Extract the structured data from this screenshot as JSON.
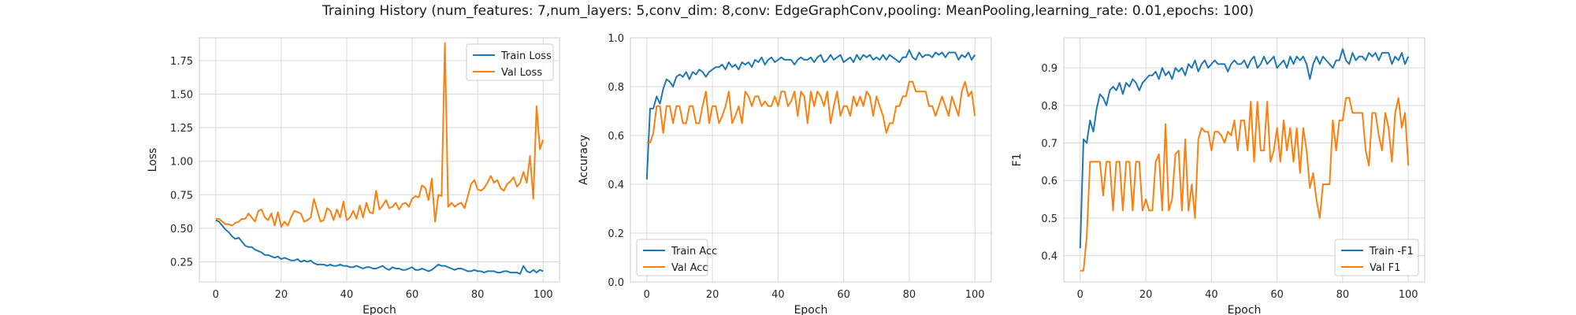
{
  "colors": {
    "train": "#1f77b4",
    "val": "#ff7f0e",
    "grid": "#d9d9d9",
    "spine": "#cccccc"
  },
  "chart_data": [
    {
      "suptitle": "Training History (num_features: 7,num_layers: 5,conv_dim: 8,conv: EdgeGraphConv,pooling: MeanPooling,learning_rate: 0.01,epochs: 100)",
      "type": "line",
      "xlabel": "Epoch",
      "ylabel": "Loss",
      "xlim": [
        -5,
        105
      ],
      "ylim": [
        0.1,
        1.92
      ],
      "xticks": [
        0,
        20,
        40,
        60,
        80,
        100
      ],
      "yticks": [
        0.25,
        0.5,
        0.75,
        1.0,
        1.25,
        1.5,
        1.75
      ],
      "ytick_labels": [
        "0.25",
        "0.50",
        "0.75",
        "1.00",
        "1.25",
        "1.50",
        "1.75"
      ],
      "grid": true,
      "legend": "upper right",
      "series": [
        {
          "name": "Train Loss",
          "color": "#1f77b4",
          "values": [
            0.56,
            0.55,
            0.52,
            0.49,
            0.47,
            0.44,
            0.42,
            0.43,
            0.4,
            0.37,
            0.36,
            0.36,
            0.34,
            0.33,
            0.32,
            0.3,
            0.3,
            0.29,
            0.28,
            0.29,
            0.27,
            0.28,
            0.27,
            0.26,
            0.26,
            0.27,
            0.25,
            0.26,
            0.25,
            0.26,
            0.24,
            0.23,
            0.23,
            0.23,
            0.22,
            0.23,
            0.22,
            0.22,
            0.23,
            0.22,
            0.22,
            0.21,
            0.21,
            0.22,
            0.21,
            0.2,
            0.21,
            0.21,
            0.2,
            0.2,
            0.21,
            0.22,
            0.2,
            0.19,
            0.21,
            0.2,
            0.2,
            0.19,
            0.19,
            0.2,
            0.21,
            0.19,
            0.19,
            0.2,
            0.19,
            0.18,
            0.19,
            0.21,
            0.23,
            0.22,
            0.22,
            0.21,
            0.2,
            0.19,
            0.2,
            0.2,
            0.19,
            0.18,
            0.18,
            0.19,
            0.18,
            0.18,
            0.17,
            0.18,
            0.18,
            0.18,
            0.17,
            0.17,
            0.18,
            0.18,
            0.17,
            0.17,
            0.17,
            0.16,
            0.22,
            0.18,
            0.17,
            0.19,
            0.17,
            0.19,
            0.18
          ]
        },
        {
          "name": "Val Loss",
          "color": "#ff7f0e",
          "values": [
            0.57,
            0.57,
            0.55,
            0.53,
            0.53,
            0.52,
            0.54,
            0.55,
            0.57,
            0.57,
            0.61,
            0.58,
            0.55,
            0.63,
            0.64,
            0.58,
            0.56,
            0.61,
            0.52,
            0.62,
            0.51,
            0.55,
            0.52,
            0.58,
            0.63,
            0.62,
            0.61,
            0.55,
            0.56,
            0.58,
            0.72,
            0.63,
            0.55,
            0.56,
            0.65,
            0.63,
            0.56,
            0.64,
            0.58,
            0.7,
            0.56,
            0.58,
            0.63,
            0.57,
            0.67,
            0.58,
            0.69,
            0.62,
            0.61,
            0.78,
            0.64,
            0.67,
            0.71,
            0.65,
            0.66,
            0.69,
            0.64,
            0.68,
            0.69,
            0.66,
            0.72,
            0.74,
            0.73,
            0.82,
            0.8,
            0.71,
            0.87,
            0.55,
            0.75,
            0.74,
            1.88,
            0.66,
            0.69,
            0.66,
            0.68,
            0.69,
            0.65,
            0.74,
            0.83,
            0.86,
            0.79,
            0.78,
            0.8,
            0.84,
            0.89,
            0.84,
            0.86,
            0.8,
            0.78,
            0.83,
            0.85,
            0.88,
            0.81,
            0.84,
            0.92,
            0.84,
            1.04,
            0.72,
            1.41,
            1.09,
            1.16
          ]
        }
      ]
    },
    {
      "type": "line",
      "xlabel": "Epoch",
      "ylabel": "Accuracy",
      "xlim": [
        -5,
        105
      ],
      "ylim": [
        0.0,
        1.0
      ],
      "xticks": [
        0,
        20,
        40,
        60,
        80,
        100
      ],
      "yticks": [
        0.0,
        0.2,
        0.4,
        0.6,
        0.8,
        1.0
      ],
      "ytick_labels": [
        "0.0",
        "0.2",
        "0.4",
        "0.6",
        "0.8",
        "1.0"
      ],
      "grid": true,
      "legend": "lower left",
      "series": [
        {
          "name": "Train Acc",
          "color": "#1f77b4",
          "values": [
            0.42,
            0.71,
            0.71,
            0.76,
            0.73,
            0.79,
            0.83,
            0.82,
            0.8,
            0.84,
            0.85,
            0.84,
            0.86,
            0.83,
            0.86,
            0.85,
            0.87,
            0.86,
            0.84,
            0.86,
            0.87,
            0.88,
            0.88,
            0.89,
            0.87,
            0.9,
            0.88,
            0.89,
            0.87,
            0.9,
            0.89,
            0.9,
            0.88,
            0.91,
            0.9,
            0.92,
            0.89,
            0.91,
            0.92,
            0.9,
            0.91,
            0.92,
            0.91,
            0.91,
            0.91,
            0.89,
            0.91,
            0.92,
            0.91,
            0.91,
            0.92,
            0.9,
            0.92,
            0.93,
            0.9,
            0.91,
            0.93,
            0.91,
            0.92,
            0.93,
            0.9,
            0.91,
            0.92,
            0.9,
            0.93,
            0.91,
            0.93,
            0.92,
            0.93,
            0.91,
            0.92,
            0.91,
            0.93,
            0.91,
            0.93,
            0.92,
            0.91,
            0.9,
            0.92,
            0.92,
            0.95,
            0.92,
            0.91,
            0.94,
            0.92,
            0.93,
            0.93,
            0.92,
            0.94,
            0.93,
            0.94,
            0.92,
            0.94,
            0.94,
            0.94,
            0.91,
            0.93,
            0.92,
            0.94,
            0.91,
            0.93
          ]
        },
        {
          "name": "Val Acc",
          "color": "#ff7f0e",
          "values": [
            0.57,
            0.57,
            0.61,
            0.72,
            0.72,
            0.61,
            0.72,
            0.72,
            0.65,
            0.72,
            0.72,
            0.65,
            0.65,
            0.72,
            0.72,
            0.65,
            0.65,
            0.72,
            0.78,
            0.65,
            0.72,
            0.72,
            0.65,
            0.68,
            0.72,
            0.78,
            0.65,
            0.68,
            0.72,
            0.65,
            0.78,
            0.76,
            0.72,
            0.76,
            0.76,
            0.72,
            0.74,
            0.72,
            0.72,
            0.76,
            0.72,
            0.78,
            0.78,
            0.72,
            0.74,
            0.78,
            0.68,
            0.78,
            0.76,
            0.65,
            0.78,
            0.72,
            0.78,
            0.76,
            0.72,
            0.78,
            0.65,
            0.72,
            0.78,
            0.68,
            0.72,
            0.72,
            0.68,
            0.76,
            0.72,
            0.76,
            0.72,
            0.78,
            0.76,
            0.68,
            0.76,
            0.72,
            0.68,
            0.61,
            0.65,
            0.65,
            0.72,
            0.72,
            0.76,
            0.76,
            0.82,
            0.82,
            0.78,
            0.78,
            0.78,
            0.78,
            0.72,
            0.72,
            0.68,
            0.72,
            0.76,
            0.72,
            0.68,
            0.76,
            0.72,
            0.68,
            0.78,
            0.82,
            0.76,
            0.78,
            0.68
          ]
        }
      ]
    },
    {
      "type": "line",
      "xlabel": "Epoch",
      "ylabel": "F1",
      "xlim": [
        -5,
        105
      ],
      "ylim": [
        0.33,
        0.98
      ],
      "xticks": [
        0,
        20,
        40,
        60,
        80,
        100
      ],
      "yticks": [
        0.4,
        0.5,
        0.6,
        0.7,
        0.8,
        0.9
      ],
      "ytick_labels": [
        "0.4",
        "0.5",
        "0.6",
        "0.7",
        "0.8",
        "0.9"
      ],
      "grid": true,
      "legend": "lower right",
      "series": [
        {
          "name": "Train -F1",
          "color": "#1f77b4",
          "values": [
            0.42,
            0.71,
            0.7,
            0.76,
            0.73,
            0.79,
            0.83,
            0.82,
            0.8,
            0.84,
            0.85,
            0.84,
            0.86,
            0.83,
            0.86,
            0.85,
            0.87,
            0.86,
            0.84,
            0.86,
            0.87,
            0.88,
            0.88,
            0.89,
            0.87,
            0.9,
            0.88,
            0.89,
            0.87,
            0.9,
            0.89,
            0.9,
            0.88,
            0.91,
            0.9,
            0.92,
            0.89,
            0.91,
            0.92,
            0.9,
            0.91,
            0.92,
            0.91,
            0.91,
            0.91,
            0.89,
            0.91,
            0.92,
            0.91,
            0.91,
            0.92,
            0.9,
            0.92,
            0.93,
            0.9,
            0.91,
            0.93,
            0.91,
            0.92,
            0.93,
            0.9,
            0.91,
            0.92,
            0.9,
            0.93,
            0.91,
            0.93,
            0.92,
            0.93,
            0.91,
            0.87,
            0.91,
            0.93,
            0.91,
            0.93,
            0.92,
            0.91,
            0.9,
            0.92,
            0.92,
            0.95,
            0.92,
            0.91,
            0.94,
            0.92,
            0.93,
            0.93,
            0.92,
            0.94,
            0.93,
            0.94,
            0.92,
            0.94,
            0.94,
            0.94,
            0.91,
            0.93,
            0.92,
            0.94,
            0.91,
            0.93
          ]
        },
        {
          "name": "Val F1",
          "color": "#ff7f0e",
          "values": [
            0.36,
            0.36,
            0.45,
            0.65,
            0.65,
            0.65,
            0.65,
            0.56,
            0.65,
            0.65,
            0.52,
            0.65,
            0.65,
            0.52,
            0.65,
            0.65,
            0.52,
            0.65,
            0.65,
            0.52,
            0.55,
            0.52,
            0.52,
            0.65,
            0.67,
            0.52,
            0.75,
            0.52,
            0.55,
            0.67,
            0.68,
            0.52,
            0.71,
            0.52,
            0.59,
            0.5,
            0.71,
            0.74,
            0.73,
            0.73,
            0.68,
            0.73,
            0.73,
            0.72,
            0.7,
            0.73,
            0.72,
            0.76,
            0.68,
            0.76,
            0.76,
            0.68,
            0.81,
            0.65,
            0.81,
            0.68,
            0.68,
            0.81,
            0.65,
            0.68,
            0.74,
            0.65,
            0.76,
            0.68,
            0.74,
            0.65,
            0.74,
            0.62,
            0.74,
            0.68,
            0.58,
            0.62,
            0.55,
            0.5,
            0.59,
            0.59,
            0.59,
            0.76,
            0.68,
            0.76,
            0.76,
            0.82,
            0.82,
            0.78,
            0.78,
            0.78,
            0.78,
            0.68,
            0.64,
            0.78,
            0.78,
            0.72,
            0.68,
            0.78,
            0.74,
            0.65,
            0.78,
            0.82,
            0.74,
            0.78,
            0.64
          ]
        }
      ]
    }
  ]
}
